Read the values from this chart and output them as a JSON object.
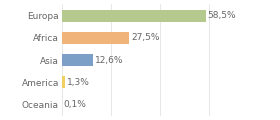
{
  "categories": [
    "Europa",
    "Africa",
    "Asia",
    "America",
    "Oceania"
  ],
  "values": [
    58.5,
    27.5,
    12.6,
    1.3,
    0.1
  ],
  "labels": [
    "58,5%",
    "27,5%",
    "12,6%",
    "1,3%",
    "0,1%"
  ],
  "bar_colors": [
    "#b5c98e",
    "#f0b47a",
    "#7b9fc7",
    "#f0d060",
    "#e8e8e8"
  ],
  "background_color": "#ffffff",
  "xlim": [
    0,
    75
  ],
  "bar_height": 0.55,
  "label_fontsize": 6.5,
  "tick_fontsize": 6.5,
  "figwidth": 2.8,
  "figheight": 1.2,
  "dpi": 100
}
